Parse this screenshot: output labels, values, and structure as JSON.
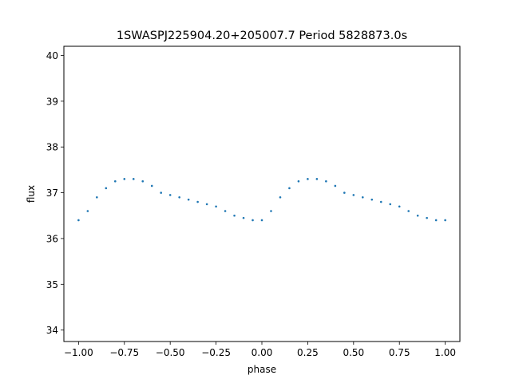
{
  "chart_data": {
    "type": "scatter",
    "title": "1SWASPJ225904.20+205007.7 Period 5828873.0s",
    "xlabel": "phase",
    "ylabel": "flux",
    "xlim": [
      -1.08,
      1.08
    ],
    "ylim": [
      33.75,
      40.2
    ],
    "xticks": [
      -1.0,
      -0.75,
      -0.5,
      -0.25,
      0.0,
      0.25,
      0.5,
      0.75,
      1.0
    ],
    "xtick_labels": [
      "−1.00",
      "−0.75",
      "−0.50",
      "−0.25",
      "0.00",
      "0.25",
      "0.50",
      "0.75",
      "1.00"
    ],
    "yticks": [
      34,
      35,
      36,
      37,
      38,
      39,
      40
    ],
    "ytick_labels": [
      "34",
      "35",
      "36",
      "37",
      "38",
      "39",
      "40"
    ],
    "grid": false,
    "marker_color": "#1f77b4",
    "series": [
      {
        "x": [
          -1.0,
          -0.95,
          -0.9,
          -0.85,
          -0.8,
          -0.75,
          -0.7,
          -0.65,
          -0.6,
          -0.55,
          -0.5,
          -0.45,
          -0.4,
          -0.35,
          -0.3,
          -0.25,
          -0.2,
          -0.15,
          -0.1,
          -0.05,
          0.0,
          0.05,
          0.1,
          0.15,
          0.2,
          0.25,
          0.3,
          0.35,
          0.4,
          0.45,
          0.5,
          0.55,
          0.6,
          0.65,
          0.7,
          0.75,
          0.8,
          0.85,
          0.9,
          0.95,
          1.0
        ],
        "y": [
          36.4,
          36.6,
          36.9,
          37.1,
          37.25,
          37.3,
          37.3,
          37.25,
          37.15,
          37.0,
          36.95,
          36.9,
          36.85,
          36.8,
          36.75,
          36.7,
          36.6,
          36.5,
          36.45,
          36.4,
          36.4,
          36.6,
          36.9,
          37.1,
          37.25,
          37.3,
          37.3,
          37.25,
          37.15,
          37.0,
          36.95,
          36.9,
          36.85,
          36.8,
          36.75,
          36.7,
          36.6,
          36.5,
          36.45,
          36.4,
          36.4
        ]
      }
    ]
  }
}
